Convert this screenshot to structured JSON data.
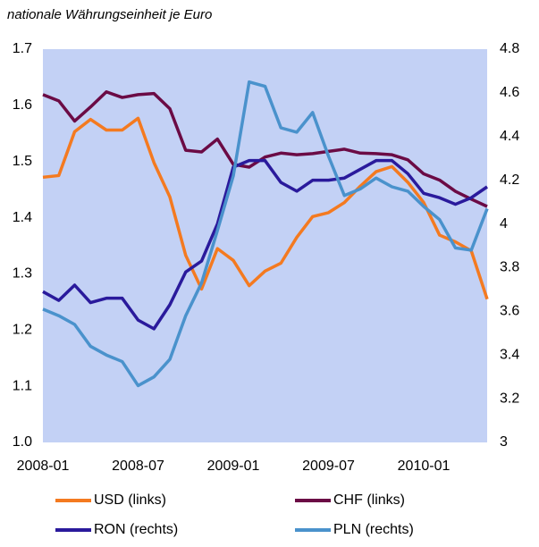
{
  "chart_data": {
    "type": "line",
    "subtitle": "nationale Währungseinheit je Euro",
    "categories": [
      "2008-01",
      null,
      null,
      null,
      null,
      null,
      "2008-07",
      null,
      null,
      null,
      null,
      null,
      "2009-01",
      null,
      null,
      null,
      null,
      null,
      "2009-07",
      null,
      null,
      null,
      null,
      null,
      "2010-01",
      null,
      null,
      null,
      null
    ],
    "ylim": [
      1.0,
      1.7
    ],
    "yticks": [
      {
        "value": 1,
        "label": "1.0"
      },
      1.1,
      1.2,
      1.3,
      1.4,
      1.5,
      1.6,
      1.7
    ],
    "y2lim": [
      3,
      4.8
    ],
    "y2ticks": [
      3,
      3.2,
      3.4,
      3.6,
      3.8,
      4,
      4.2,
      4.4,
      4.6,
      4.8
    ],
    "plot_background": "#c3d1f5",
    "series": [
      {
        "name": "USD (links)",
        "color": "#f47a20",
        "values": [
          1.472,
          1.475,
          1.553,
          1.575,
          1.556,
          1.556,
          1.577,
          1.498,
          1.437,
          1.333,
          1.273,
          1.345,
          1.324,
          1.279,
          1.305,
          1.319,
          1.365,
          1.402,
          1.409,
          1.427,
          1.456,
          1.482,
          1.491,
          1.463,
          1.427,
          1.369,
          1.357,
          1.341,
          1.255
        ]
      },
      {
        "name": "CHF (links)",
        "color": "#6b0b45",
        "values": [
          1.619,
          1.608,
          1.572,
          1.597,
          1.624,
          1.614,
          1.619,
          1.621,
          1.594,
          1.52,
          1.517,
          1.54,
          1.495,
          1.49,
          1.508,
          1.515,
          1.512,
          1.514,
          1.518,
          1.522,
          1.515,
          1.514,
          1.512,
          1.503,
          1.478,
          1.467,
          1.447,
          1.433,
          1.42
        ]
      },
      {
        "name": "RON (rechts)",
        "color": "#2a1a9c",
        "axis": "y2",
        "values": [
          3.69,
          3.65,
          3.72,
          3.64,
          3.66,
          3.66,
          3.56,
          3.52,
          3.63,
          3.78,
          3.83,
          4.0,
          4.26,
          4.29,
          4.29,
          4.19,
          4.15,
          4.2,
          4.2,
          4.21,
          4.25,
          4.29,
          4.29,
          4.23,
          4.14,
          4.12,
          4.09,
          4.12,
          4.17
        ]
      },
      {
        "name": "PLN (rechts)",
        "color": "#4a92cc",
        "axis": "y2",
        "values": [
          3.61,
          3.58,
          3.54,
          3.44,
          3.4,
          3.37,
          3.26,
          3.3,
          3.38,
          3.58,
          3.73,
          3.97,
          4.22,
          4.65,
          4.63,
          4.44,
          4.42,
          4.51,
          4.31,
          4.13,
          4.16,
          4.21,
          4.17,
          4.15,
          4.08,
          4.02,
          3.89,
          3.88,
          4.07
        ]
      }
    ]
  }
}
